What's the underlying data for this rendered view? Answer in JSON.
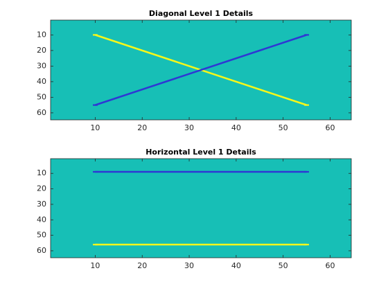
{
  "chart_data": [
    {
      "type": "image",
      "title": "Diagonal Level 1 Details",
      "background": "#17bfb6",
      "y_reversed": true,
      "xlim": [
        0.5,
        64.5
      ],
      "ylim": [
        0.5,
        64.5
      ],
      "xticks": [
        10,
        20,
        30,
        40,
        50,
        60
      ],
      "yticks": [
        10,
        20,
        30,
        40,
        50,
        60
      ],
      "series": [
        {
          "color": "#f7f71a",
          "x": [
            10,
            55
          ],
          "values": [
            10,
            55
          ]
        },
        {
          "color": "#2e37d4",
          "x": [
            10,
            55
          ],
          "values": [
            55,
            10
          ]
        }
      ]
    },
    {
      "type": "image",
      "title": "Horizontal Level 1 Details",
      "background": "#17bfb6",
      "y_reversed": true,
      "xlim": [
        0.5,
        64.5
      ],
      "ylim": [
        0.5,
        64.5
      ],
      "xticks": [
        10,
        20,
        30,
        40,
        50,
        60
      ],
      "yticks": [
        10,
        20,
        30,
        40,
        50,
        60
      ],
      "series": [
        {
          "color": "#2e37d4",
          "x": [
            10,
            55
          ],
          "values": [
            9,
            9
          ]
        },
        {
          "color": "#f7f71a",
          "x": [
            10,
            55
          ],
          "values": [
            56,
            56
          ]
        }
      ]
    }
  ]
}
